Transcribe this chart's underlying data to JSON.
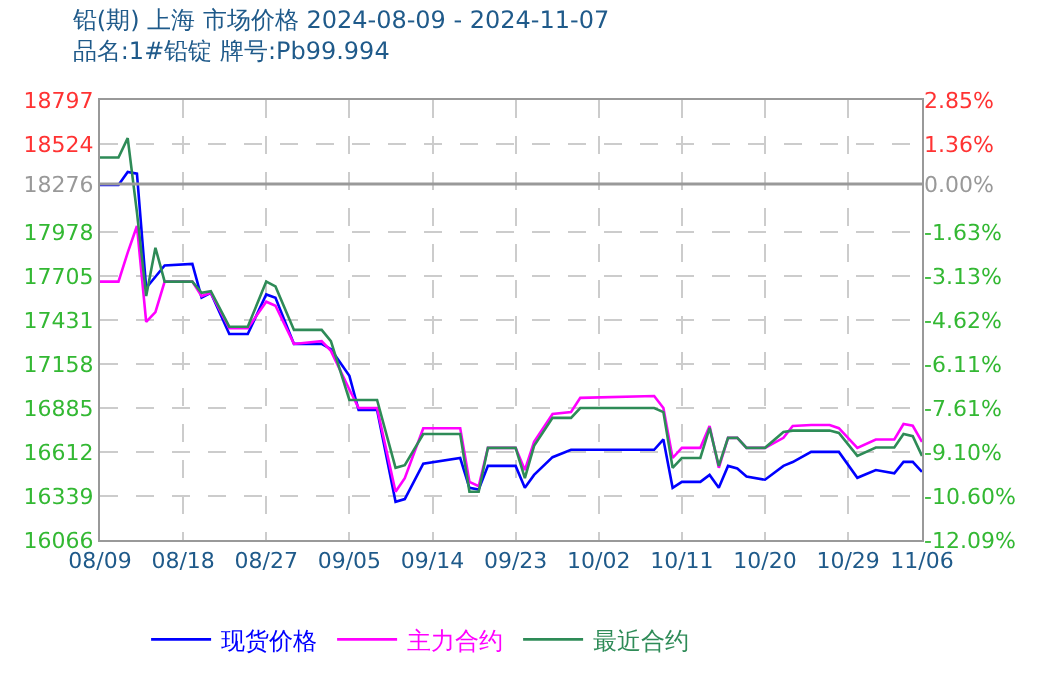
{
  "chart_data": {
    "type": "line",
    "title": "铅(期) 上海 市场价格 2024-08-09 - 2024-11-07",
    "subtitle": "品名:1#铅锭 牌号:Pb99.994",
    "x": [
      "2024-08-09",
      "2024-08-11",
      "2024-08-12",
      "2024-08-13",
      "2024-08-14",
      "2024-08-15",
      "2024-08-16",
      "2024-08-19",
      "2024-08-20",
      "2024-08-21",
      "2024-08-23",
      "2024-08-25",
      "2024-08-27",
      "2024-08-28",
      "2024-08-30",
      "2024-09-02",
      "2024-09-03",
      "2024-09-05",
      "2024-09-06",
      "2024-09-08",
      "2024-09-10",
      "2024-09-11",
      "2024-09-13",
      "2024-09-17",
      "2024-09-18",
      "2024-09-19",
      "2024-09-20",
      "2024-09-23",
      "2024-09-24",
      "2024-09-25",
      "2024-09-27",
      "2024-09-29",
      "2024-09-30",
      "2024-10-08",
      "2024-10-09",
      "2024-10-10",
      "2024-10-11",
      "2024-10-13",
      "2024-10-14",
      "2024-10-15",
      "2024-10-16",
      "2024-10-17",
      "2024-10-18",
      "2024-10-20",
      "2024-10-22",
      "2024-10-23",
      "2024-10-25",
      "2024-10-27",
      "2024-10-28",
      "2024-10-30",
      "2024-11-01",
      "2024-11-03",
      "2024-11-04",
      "2024-11-05",
      "2024-11-06"
    ],
    "series": [
      {
        "name": "现货价格",
        "color": "#0000ff",
        "values": [
          18270,
          18270,
          18350,
          18340,
          17630,
          17700,
          17770,
          17780,
          17570,
          17600,
          17345,
          17345,
          17590,
          17570,
          17283,
          17283,
          17250,
          17085,
          16873,
          16873,
          16303,
          16320,
          16540,
          16575,
          16390,
          16380,
          16526,
          16526,
          16390,
          16470,
          16580,
          16626,
          16626,
          16626,
          16690,
          16390,
          16427,
          16427,
          16470,
          16390,
          16526,
          16510,
          16460,
          16440,
          16526,
          16550,
          16613,
          16613,
          16613,
          16452,
          16500,
          16480,
          16551,
          16551,
          16489
        ]
      },
      {
        "name": "主力合约",
        "color": "#ff00ff",
        "values": [
          17670,
          17670,
          17850,
          18015,
          17420,
          17480,
          17670,
          17670,
          17580,
          17600,
          17380,
          17380,
          17545,
          17520,
          17283,
          17300,
          17240,
          17000,
          16885,
          16885,
          16365,
          16450,
          16760,
          16760,
          16427,
          16400,
          16638,
          16638,
          16500,
          16675,
          16848,
          16861,
          16948,
          16960,
          16885,
          16575,
          16638,
          16638,
          16774,
          16514,
          16700,
          16700,
          16638,
          16638,
          16700,
          16774,
          16780,
          16780,
          16760,
          16638,
          16690,
          16690,
          16786,
          16775,
          16675
        ]
      },
      {
        "name": "最近合约",
        "color": "#2e8b57",
        "values": [
          18440,
          18440,
          18560,
          18100,
          17580,
          17880,
          17670,
          17670,
          17600,
          17610,
          17390,
          17390,
          17670,
          17640,
          17370,
          17370,
          17300,
          16935,
          16935,
          16935,
          16514,
          16530,
          16724,
          16724,
          16365,
          16365,
          16638,
          16638,
          16450,
          16650,
          16824,
          16824,
          16885,
          16885,
          16860,
          16514,
          16575,
          16575,
          16762,
          16526,
          16700,
          16700,
          16638,
          16638,
          16737,
          16745,
          16745,
          16745,
          16730,
          16588,
          16640,
          16640,
          16724,
          16710,
          16588
        ]
      }
    ],
    "xlim": [
      "2024-08-09",
      "2024-11-06"
    ],
    "xticks": [
      {
        "value": "2024-08-09",
        "label": "08/09"
      },
      {
        "value": "2024-08-18",
        "label": "08/18"
      },
      {
        "value": "2024-08-27",
        "label": "08/27"
      },
      {
        "value": "2024-09-05",
        "label": "09/05"
      },
      {
        "value": "2024-09-14",
        "label": "09/14"
      },
      {
        "value": "2024-09-23",
        "label": "09/23"
      },
      {
        "value": "2024-10-02",
        "label": "10/02"
      },
      {
        "value": "2024-10-11",
        "label": "10/11"
      },
      {
        "value": "2024-10-20",
        "label": "10/20"
      },
      {
        "value": "2024-10-29",
        "label": "10/29"
      },
      {
        "value": "2024-11-06",
        "label": "11/06"
      }
    ],
    "ylim": [
      16066,
      18797
    ],
    "yticks": [
      16066,
      16339,
      16612,
      16885,
      17158,
      17431,
      17705,
      17978,
      18276,
      18524,
      18797
    ],
    "y2lim": [
      -12.09,
      2.85
    ],
    "y2ticks": [
      {
        "value": -12.09,
        "label": "-12.09%"
      },
      {
        "value": -10.6,
        "label": "-10.60%"
      },
      {
        "value": -9.1,
        "label": "-9.10%"
      },
      {
        "value": -7.61,
        "label": "-7.61%"
      },
      {
        "value": -6.11,
        "label": "-6.11%"
      },
      {
        "value": -4.62,
        "label": "-4.62%"
      },
      {
        "value": -3.13,
        "label": "-3.13%"
      },
      {
        "value": -1.63,
        "label": "-1.63%"
      },
      {
        "value": 0,
        "label": "0.00%"
      },
      {
        "value": 1.36,
        "label": "1.36%"
      },
      {
        "value": 2.85,
        "label": "2.85%"
      }
    ],
    "ref_lines": [
      {
        "axis": "y",
        "value": 18276,
        "color": "#999999"
      }
    ],
    "grid": true,
    "legend": "bottom",
    "marker": "none",
    "line_style": "solid"
  }
}
